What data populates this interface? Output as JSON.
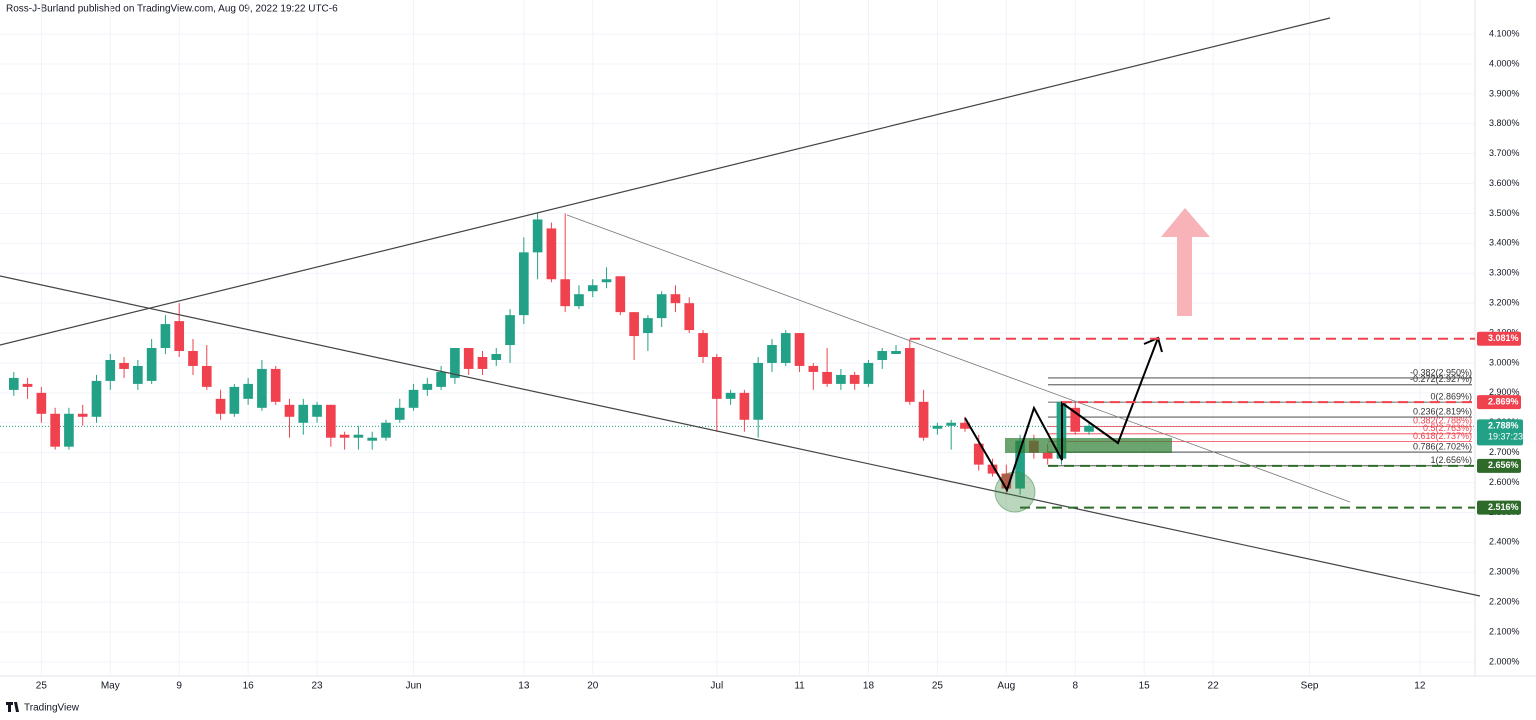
{
  "chart_data": {
    "type": "candlestick",
    "title": "Ross-J-Burland published on TradingView.com, Aug 09, 2022 19:22 UTC-6",
    "footer": "TradingView",
    "up_color": "#22a186",
    "down_color": "#f0424e",
    "open": [
      2.91,
      2.93,
      2.9,
      2.83,
      2.72,
      2.83,
      2.82,
      2.94,
      3.0,
      2.93,
      2.94,
      3.05,
      3.14,
      3.04,
      2.99,
      2.88,
      2.83,
      2.88,
      2.85,
      2.98,
      2.86,
      2.8,
      2.82,
      2.86,
      2.76,
      2.75,
      2.74,
      2.75,
      2.81,
      2.85,
      2.91,
      2.92,
      2.95,
      3.05,
      3.02,
      3.01,
      3.06,
      3.16,
      3.37,
      3.45,
      3.28,
      3.19,
      3.24,
      3.27,
      3.29,
      3.17,
      3.1,
      3.15,
      3.23,
      3.2,
      3.1,
      3.02,
      2.88,
      2.9,
      2.81,
      3.0,
      3.0,
      3.1,
      2.99,
      2.97,
      2.93,
      2.96,
      2.93,
      3.01,
      3.03,
      3.05,
      2.87,
      2.78,
      2.79,
      2.8,
      2.73,
      2.66,
      2.63,
      2.58,
      2.74,
      2.7,
      2.68,
      2.85,
      2.77
    ],
    "high": [
      2.97,
      2.95,
      2.92,
      2.85,
      2.85,
      2.86,
      2.96,
      3.03,
      3.02,
      3.01,
      3.08,
      3.16,
      3.2,
      3.08,
      3.06,
      2.91,
      2.93,
      2.95,
      3.01,
      2.99,
      2.88,
      2.88,
      2.87,
      2.86,
      2.77,
      2.79,
      2.77,
      2.81,
      2.88,
      2.93,
      2.95,
      2.99,
      3.05,
      3.05,
      3.04,
      3.05,
      3.18,
      3.42,
      3.5,
      3.47,
      3.5,
      3.26,
      3.28,
      3.32,
      3.29,
      3.17,
      3.16,
      3.24,
      3.26,
      3.22,
      3.11,
      3.03,
      2.91,
      2.91,
      3.02,
      3.08,
      3.11,
      3.1,
      3.0,
      3.05,
      2.98,
      2.97,
      3.01,
      3.05,
      3.06,
      3.08,
      2.91,
      2.8,
      2.81,
      2.82,
      2.76,
      2.68,
      2.66,
      2.76,
      2.76,
      2.73,
      2.87,
      2.87,
      2.8
    ],
    "low": [
      2.89,
      2.88,
      2.8,
      2.71,
      2.71,
      2.79,
      2.8,
      2.91,
      2.95,
      2.91,
      2.93,
      3.03,
      3.02,
      2.96,
      2.91,
      2.81,
      2.82,
      2.86,
      2.84,
      2.86,
      2.75,
      2.76,
      2.8,
      2.72,
      2.71,
      2.71,
      2.71,
      2.74,
      2.8,
      2.84,
      2.89,
      2.91,
      2.93,
      2.96,
      2.96,
      2.99,
      3.0,
      3.13,
      3.28,
      3.27,
      3.17,
      3.18,
      3.22,
      3.25,
      3.16,
      3.01,
      3.04,
      3.12,
      3.17,
      3.1,
      3.0,
      2.77,
      2.86,
      2.77,
      2.75,
      2.97,
      2.99,
      2.97,
      2.91,
      2.92,
      2.91,
      2.91,
      2.92,
      2.98,
      3.03,
      2.86,
      2.74,
      2.76,
      2.71,
      2.77,
      2.64,
      2.62,
      2.56,
      2.56,
      2.68,
      2.66,
      2.66,
      2.76,
      2.76
    ],
    "close": [
      2.95,
      2.92,
      2.83,
      2.72,
      2.83,
      2.82,
      2.94,
      3.01,
      2.98,
      2.99,
      3.05,
      3.13,
      3.04,
      2.99,
      2.92,
      2.83,
      2.92,
      2.93,
      2.98,
      2.87,
      2.82,
      2.86,
      2.86,
      2.75,
      2.75,
      2.76,
      2.75,
      2.8,
      2.85,
      2.91,
      2.93,
      2.97,
      3.05,
      2.98,
      2.98,
      3.03,
      3.16,
      3.37,
      3.48,
      3.28,
      3.19,
      3.23,
      3.26,
      3.28,
      3.17,
      3.09,
      3.15,
      3.23,
      3.2,
      3.11,
      3.02,
      2.88,
      2.9,
      2.81,
      3.0,
      3.06,
      3.1,
      2.99,
      2.97,
      2.93,
      2.96,
      2.93,
      3.0,
      3.04,
      3.04,
      2.87,
      2.75,
      2.79,
      2.8,
      2.78,
      2.66,
      2.63,
      2.58,
      2.74,
      2.7,
      2.68,
      2.87,
      2.77,
      2.79
    ],
    "xlim": [
      -1,
      106
    ],
    "xticks": [
      {
        "value": 2,
        "label": "25"
      },
      {
        "value": 7,
        "label": "May"
      },
      {
        "value": 12,
        "label": "9"
      },
      {
        "value": 17,
        "label": "16"
      },
      {
        "value": 22,
        "label": "23"
      },
      {
        "value": 29,
        "label": "Jun"
      },
      {
        "value": 37,
        "label": "13"
      },
      {
        "value": 42,
        "label": "20"
      },
      {
        "value": 51,
        "label": "Jul"
      },
      {
        "value": 57,
        "label": "11"
      },
      {
        "value": 62,
        "label": "18"
      },
      {
        "value": 67,
        "label": "25"
      },
      {
        "value": 72,
        "label": "Aug"
      },
      {
        "value": 77,
        "label": "8"
      },
      {
        "value": 82,
        "label": "15"
      },
      {
        "value": 87,
        "label": "22"
      },
      {
        "value": 94,
        "label": "Sep"
      },
      {
        "value": 102,
        "label": "12"
      }
    ],
    "ylim": [
      1.953,
      4.214
    ],
    "yticks": [
      {
        "value": 2.0,
        "label": "2.000%"
      },
      {
        "value": 2.1,
        "label": "2.100%"
      },
      {
        "value": 2.2,
        "label": "2.200%"
      },
      {
        "value": 2.3,
        "label": "2.300%"
      },
      {
        "value": 2.4,
        "label": "2.400%"
      },
      {
        "value": 2.5,
        "label": "2.500%"
      },
      {
        "value": 2.6,
        "label": "2.600%"
      },
      {
        "value": 2.7,
        "label": "2.700%"
      },
      {
        "value": 2.8,
        "label": "2.800%"
      },
      {
        "value": 2.9,
        "label": "2.900%"
      },
      {
        "value": 3.0,
        "label": "3.000%"
      },
      {
        "value": 3.1,
        "label": "3.100%"
      },
      {
        "value": 3.2,
        "label": "3.200%"
      },
      {
        "value": 3.3,
        "label": "3.300%"
      },
      {
        "value": 3.4,
        "label": "3.400%"
      },
      {
        "value": 3.5,
        "label": "3.500%"
      },
      {
        "value": 3.6,
        "label": "3.600%"
      },
      {
        "value": 3.7,
        "label": "3.700%"
      },
      {
        "value": 3.8,
        "label": "3.800%"
      },
      {
        "value": 3.9,
        "label": "3.900%"
      },
      {
        "value": 4.0,
        "label": "4.000%"
      },
      {
        "value": 4.1,
        "label": "4.100%"
      }
    ],
    "fib_levels": [
      {
        "value": 2.95,
        "label": "-0.382(2.950%)"
      },
      {
        "value": 2.927,
        "label": "-0.272(2.927%)"
      },
      {
        "value": 2.869,
        "label": "0(2.869%)"
      },
      {
        "value": 2.819,
        "label": "0.236(2.819%)"
      },
      {
        "value": 2.788,
        "label": "0.382(2.788%)"
      },
      {
        "value": 2.763,
        "label": "0.5(2.763%)"
      },
      {
        "value": 2.737,
        "label": "0.618(2.737%)"
      },
      {
        "value": 2.702,
        "label": "0.786(2.702%)"
      },
      {
        "value": 2.656,
        "label": "1(2.656%)"
      }
    ],
    "levels": [
      {
        "value": 3.081,
        "label": "3.081%",
        "color": "#f0424e"
      },
      {
        "value": 2.869,
        "label": "2.869%",
        "color": "#f0424e"
      },
      {
        "value": 2.656,
        "label": "2.656%",
        "color": "#2e6b2a"
      },
      {
        "value": 2.516,
        "label": "2.516%",
        "color": "#2e6b2a"
      }
    ],
    "last_price": {
      "value": 2.788,
      "label": "2.788%",
      "countdown": "19:37:23",
      "color": "#22a186"
    }
  }
}
